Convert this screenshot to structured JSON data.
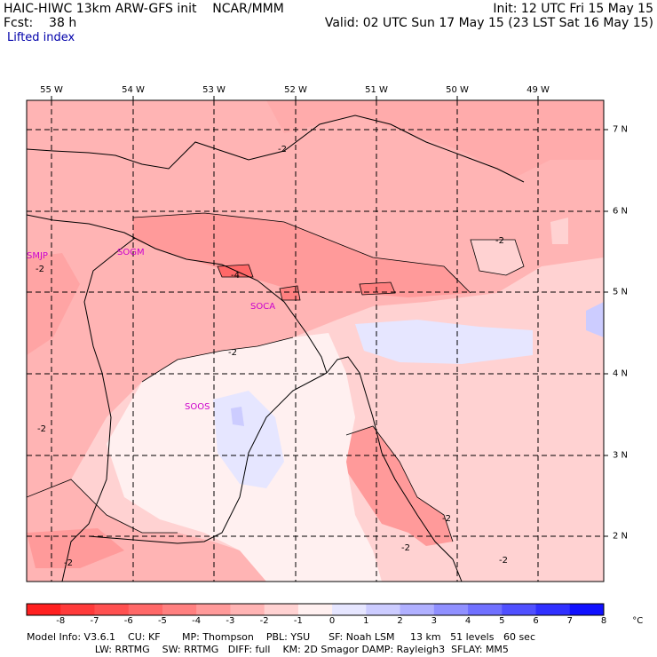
{
  "header": {
    "title": "HAIC-HIWC 13km ARW-GFS init    NCAR/MMM",
    "init": "Init: 12 UTC Fri 15 May 15",
    "fcst": "Fcst:    38 h",
    "valid": "Valid: 02 UTC Sun 17 May 15 (23 LST Sat 16 May 15)",
    "field": "Lifted index"
  },
  "lon_labels": [
    "55 W",
    "54 W",
    "53 W",
    "52 W",
    "51 W",
    "50 W",
    "49 W"
  ],
  "lat_labels": [
    "7 N",
    "6 N",
    "5 N",
    "4 N",
    "3 N",
    "2 N"
  ],
  "stations": [
    "SMJP",
    "SOGM",
    "SOCA",
    "SOOS"
  ],
  "contour_labels": [
    "-2",
    "-2",
    "-4",
    "-2",
    "-2",
    "-2",
    "-2",
    "-2",
    "-2",
    "-2"
  ],
  "colorbar": {
    "labels": [
      "-8",
      "-7",
      "-6",
      "-5",
      "-4",
      "-3",
      "-2",
      "-1",
      "0",
      "1",
      "2",
      "3",
      "4",
      "5",
      "6",
      "7",
      "8",
      "°C"
    ],
    "colors": [
      "#ff2020",
      "#ff3a3a",
      "#ff5050",
      "#ff6868",
      "#ff8080",
      "#ff9a9a",
      "#ffb4b4",
      "#ffd2d2",
      "#fff0f0",
      "#e6e6ff",
      "#ccccff",
      "#b0b0ff",
      "#9090ff",
      "#7070ff",
      "#5050ff",
      "#3030ff",
      "#1010ff"
    ]
  },
  "model_info": {
    "line1": "Model Info: V3.6.1    CU: KF       MP: Thompson    PBL: YSU      SF: Noah LSM     13 km   51 levels   60 sec",
    "line2": "                      LW: RRTMG    SW: RRTMG   DIFF: full    KM: 2D Smagor DAMP: Rayleigh3  SFLAY: MM5"
  }
}
